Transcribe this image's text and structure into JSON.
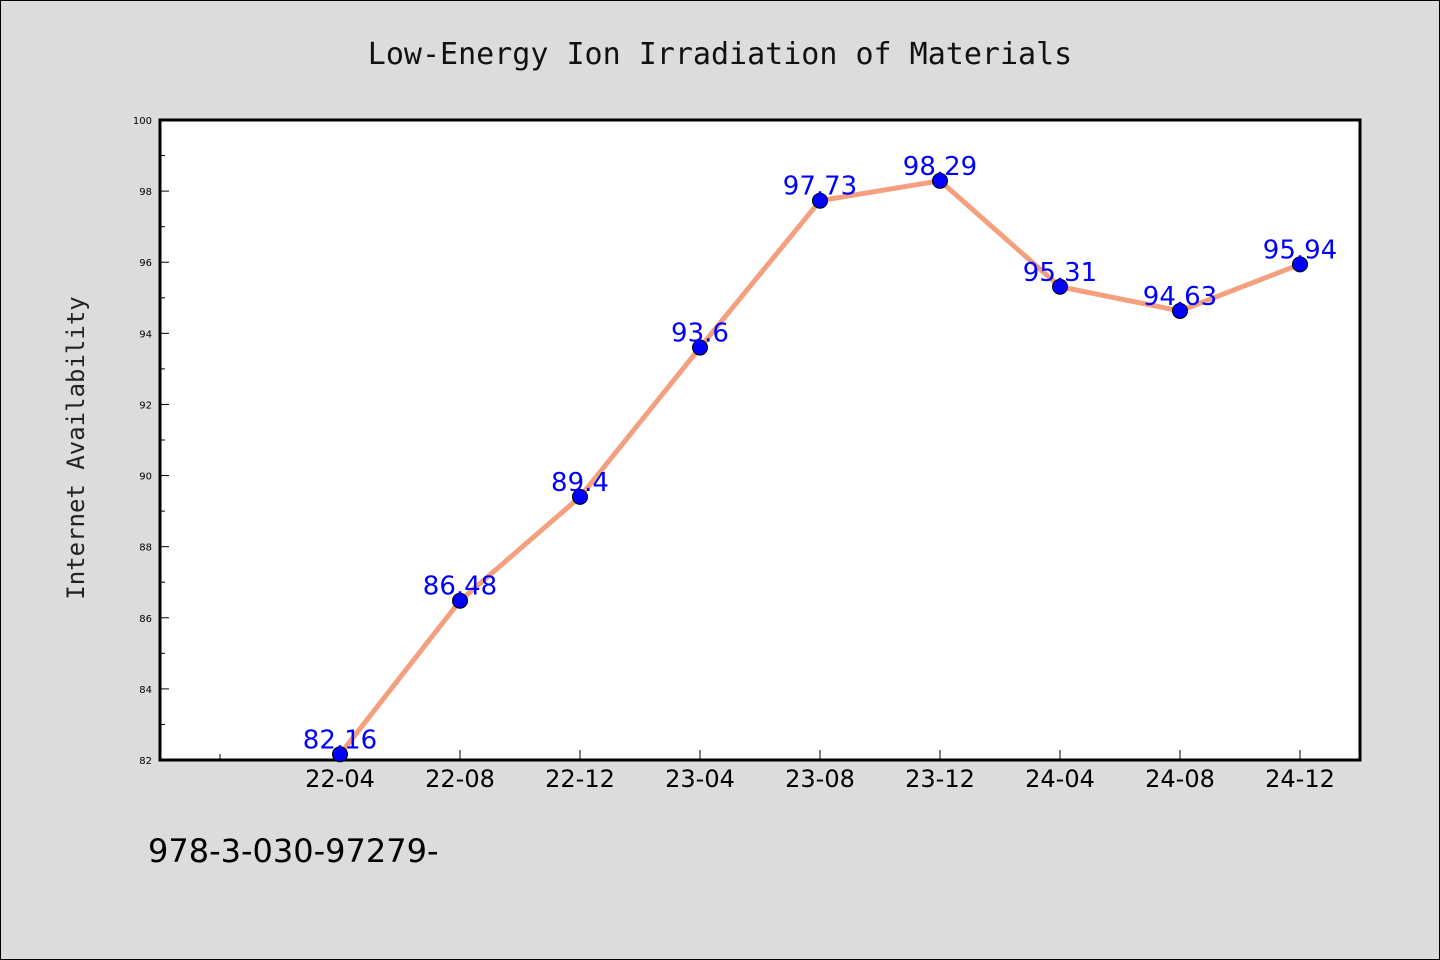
{
  "chart_data": {
    "type": "line",
    "title": "Low-Energy Ion Irradiation of Materials",
    "xlabel": "",
    "ylabel": "Internet Availability",
    "categories": [
      "22-04",
      "22-08",
      "22-12",
      "23-04",
      "23-08",
      "23-12",
      "24-04",
      "24-08",
      "24-12"
    ],
    "series": [
      {
        "values": [
          82.16,
          86.48,
          89.4,
          93.6,
          97.73,
          98.29,
          95.31,
          94.63,
          95.94
        ]
      }
    ],
    "data_labels": [
      "82.16",
      "86.48",
      "89.4",
      "93.6",
      "97.73",
      "98.29",
      "95.31",
      "94.63",
      "95.94"
    ],
    "ylim": [
      82,
      100
    ],
    "yticks": [
      "82",
      "84",
      "86",
      "88",
      "90",
      "92",
      "94",
      "96",
      "98",
      "100"
    ],
    "grid": false,
    "legend": "none",
    "colors": {
      "line": "#f4a07f",
      "marker": "#0000ff",
      "label": "#0000ff",
      "background": "#dcdcdc",
      "plot": "#ffffff"
    }
  },
  "caption": "978-3-030-97279-"
}
